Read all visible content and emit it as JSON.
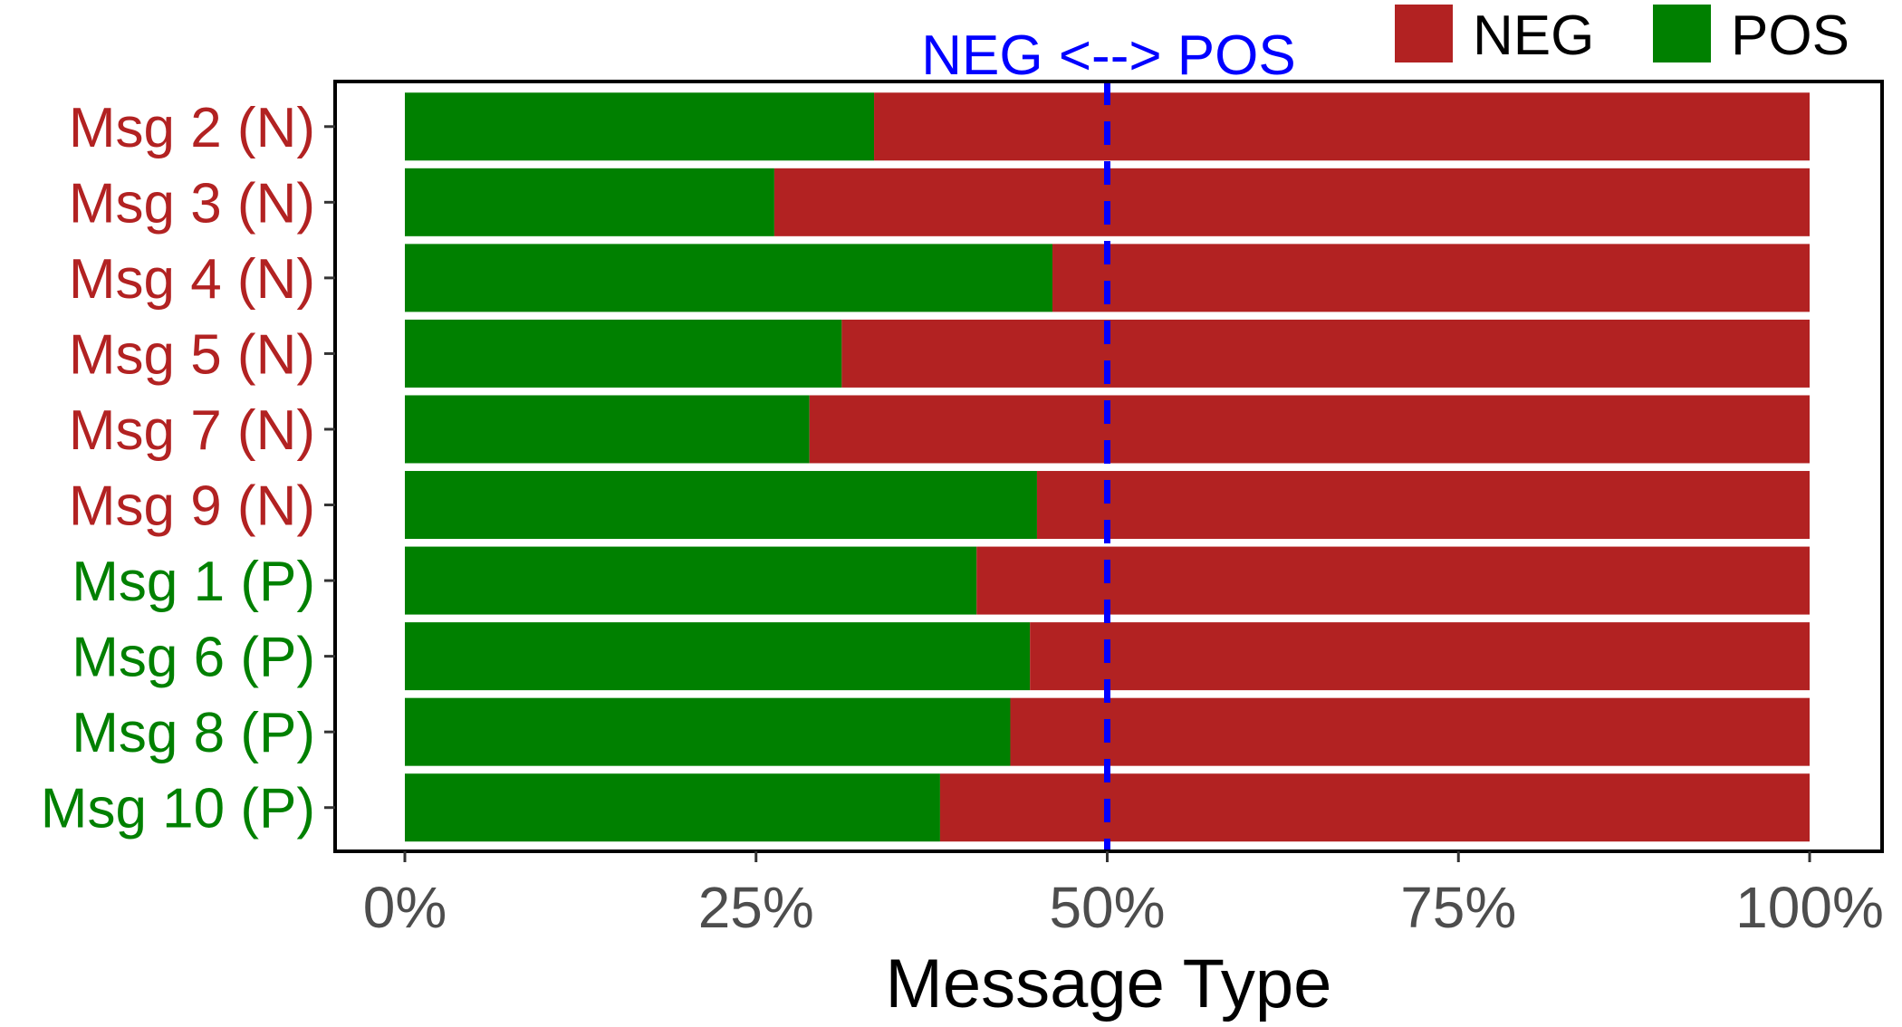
{
  "chart_data": {
    "type": "bar",
    "orientation": "horizontal",
    "stacked": true,
    "normalized": true,
    "categories": [
      "Msg 2 (N)",
      "Msg 3 (N)",
      "Msg 4 (N)",
      "Msg 5 (N)",
      "Msg 7 (N)",
      "Msg 9 (N)",
      "Msg 1 (P)",
      "Msg 6 (P)",
      "Msg 8 (P)",
      "Msg 10 (P)"
    ],
    "category_groups": [
      "N",
      "N",
      "N",
      "N",
      "N",
      "N",
      "P",
      "P",
      "P",
      "P"
    ],
    "series": [
      {
        "name": "POS",
        "color": "#008000",
        "values": [
          33.4,
          26.3,
          46.1,
          31.1,
          28.8,
          45.0,
          40.7,
          44.5,
          43.1,
          38.1
        ]
      },
      {
        "name": "NEG",
        "color": "#b22222",
        "values": [
          66.6,
          73.7,
          53.9,
          68.9,
          71.2,
          55.0,
          59.3,
          55.5,
          56.9,
          61.9
        ]
      }
    ],
    "xlabel": "Message Type",
    "ylabel": "",
    "xlim": [
      0,
      100
    ],
    "xticks": [
      "0%",
      "25%",
      "50%",
      "75%",
      "100%"
    ],
    "xtick_values": [
      0,
      25,
      50,
      75,
      100
    ],
    "reference_line": {
      "value": 50,
      "label": "NEG <--> POS",
      "color": "#0000ff",
      "style": "dashed"
    },
    "legend": {
      "position": "top-right",
      "entries": [
        "NEG",
        "POS"
      ]
    },
    "group_colors": {
      "N": "#b22222",
      "P": "#008000"
    },
    "grid": false
  }
}
